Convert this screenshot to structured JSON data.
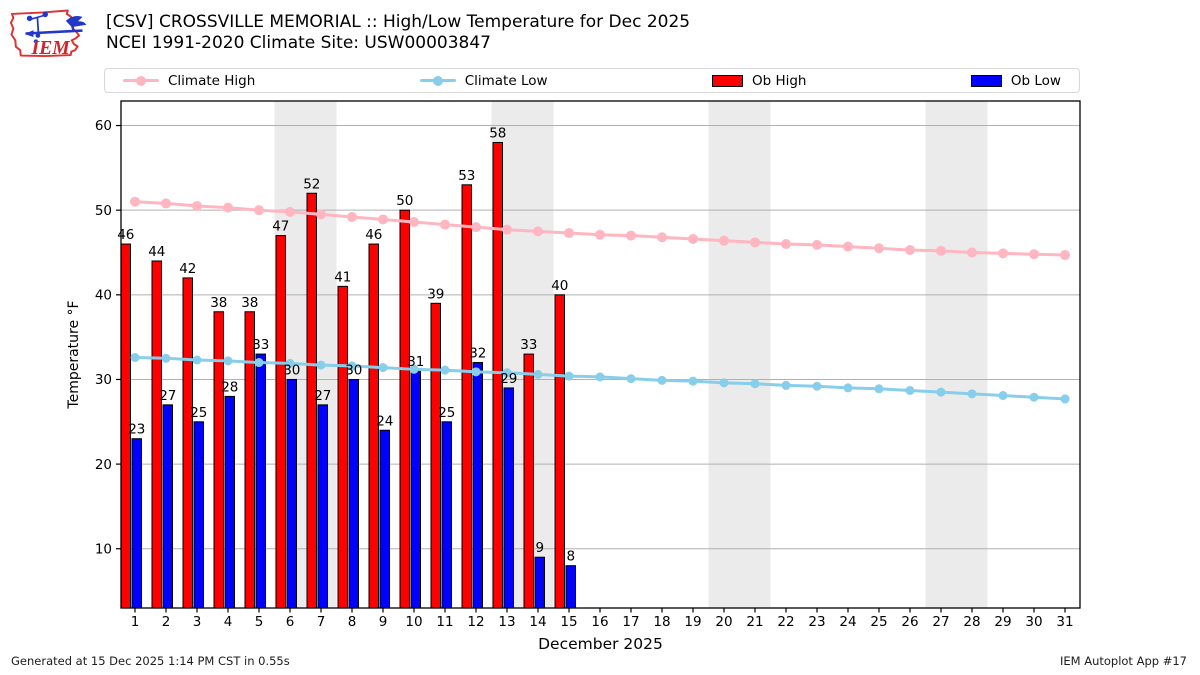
{
  "header": {
    "logo_text": "IEM"
  },
  "footer": {
    "generated_text": "Generated at 15 Dec 2025 1:14 PM CST in 0.55s",
    "app_text": "IEM Autoplot App #17"
  },
  "chart_data": {
    "type": "bar",
    "title": "[CSV] CROSSVILLE MEMORIAL :: High/Low Temperature for Dec 2025",
    "subtitle": "NCEI 1991-2020 Climate Site: USW00003847",
    "xlabel": "December 2025",
    "ylabel": "Temperature °F",
    "x": [
      1,
      2,
      3,
      4,
      5,
      6,
      7,
      8,
      9,
      10,
      11,
      12,
      13,
      14,
      15,
      16,
      17,
      18,
      19,
      20,
      21,
      22,
      23,
      24,
      25,
      26,
      27,
      28,
      29,
      30,
      31
    ],
    "xlim": [
      0.55,
      31.48
    ],
    "ylim": [
      3,
      62.9
    ],
    "yticks": [
      10,
      20,
      30,
      40,
      50,
      60
    ],
    "grid": "horizontal",
    "legend_position": "top",
    "weekend_shading_days": [
      [
        6,
        7
      ],
      [
        13,
        14
      ],
      [
        20,
        21
      ],
      [
        27,
        28
      ]
    ],
    "colors": {
      "weekend_band": "#EBEBEB",
      "grid": "#B0B0B0",
      "frame": "#000000"
    },
    "series": [
      {
        "name": "Climate High",
        "type": "line",
        "color": "#FFB6C1",
        "values": [
          51.0,
          50.8,
          50.5,
          50.3,
          50.0,
          49.8,
          49.5,
          49.2,
          48.9,
          48.6,
          48.3,
          48.0,
          47.7,
          47.5,
          47.3,
          47.1,
          47.0,
          46.8,
          46.6,
          46.4,
          46.2,
          46.0,
          45.9,
          45.7,
          45.5,
          45.3,
          45.2,
          45.0,
          44.9,
          44.8,
          44.7
        ]
      },
      {
        "name": "Climate Low",
        "type": "line",
        "color": "#87CEEB",
        "values": [
          32.6,
          32.5,
          32.3,
          32.2,
          32.0,
          31.9,
          31.7,
          31.6,
          31.4,
          31.2,
          31.1,
          30.9,
          30.8,
          30.6,
          30.4,
          30.3,
          30.1,
          29.9,
          29.8,
          29.6,
          29.5,
          29.3,
          29.2,
          29.0,
          28.9,
          28.7,
          28.5,
          28.3,
          28.1,
          27.9,
          27.7
        ]
      },
      {
        "name": "Ob High",
        "type": "bar",
        "color": "#FF0000",
        "values": [
          46,
          44,
          42,
          38,
          38,
          47,
          52,
          41,
          46,
          50,
          39,
          53,
          58,
          33,
          40
        ]
      },
      {
        "name": "Ob Low",
        "type": "bar",
        "color": "#0000FF",
        "values": [
          23,
          27,
          25,
          28,
          33,
          30,
          27,
          30,
          24,
          31,
          25,
          32,
          29,
          9,
          8
        ]
      }
    ]
  }
}
